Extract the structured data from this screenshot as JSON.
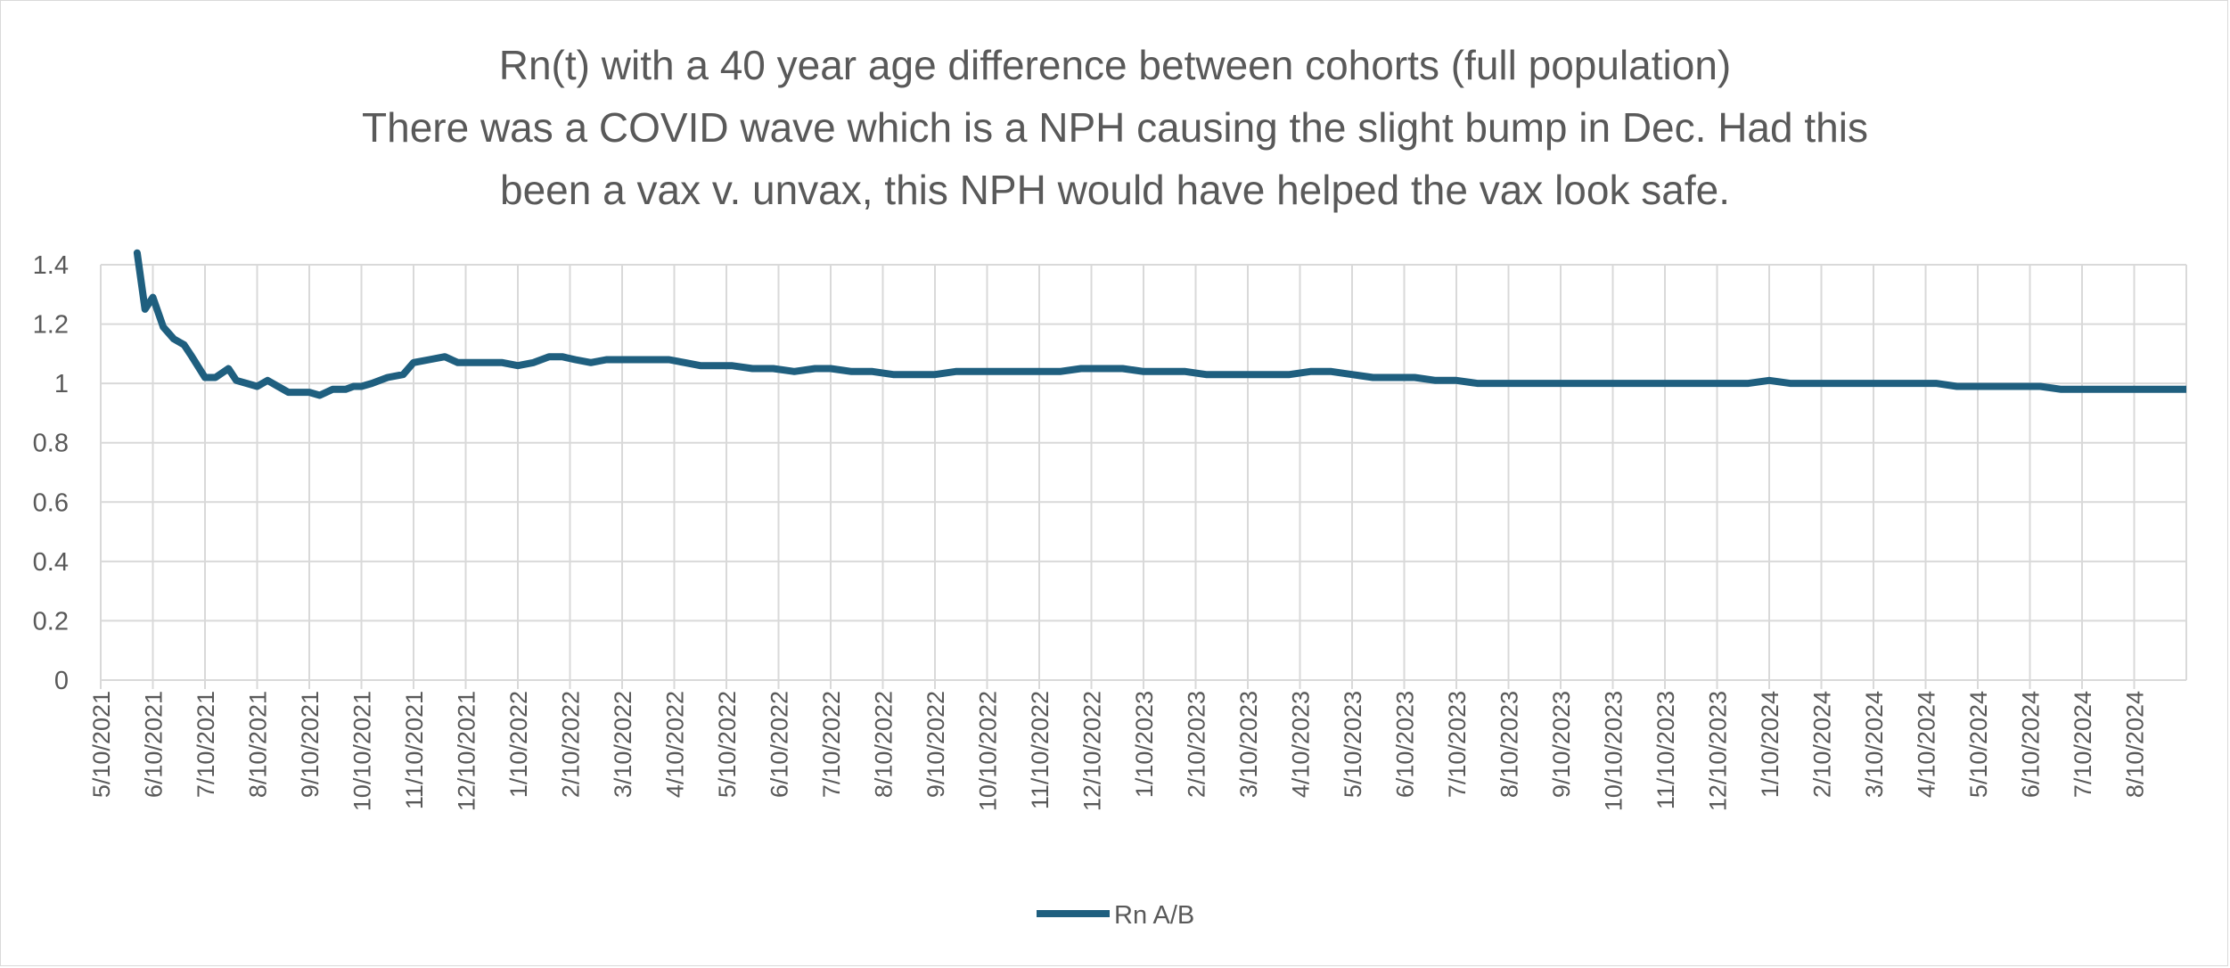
{
  "chart_data": {
    "type": "line",
    "title_lines": [
      "Rn(t) with a 40 year age difference between cohorts (full population)",
      "There was a COVID wave which is a NPH causing the slight bump in Dec.  Had this",
      "been a vax v. unvax, this NPH would have helped the vax look safe."
    ],
    "ylim": [
      0,
      1.4
    ],
    "y_ticks": [
      "0",
      "0.2",
      "0.4",
      "0.6",
      "0.8",
      "1",
      "1.2",
      "1.4"
    ],
    "x_ticks": [
      "5/10/2021",
      "6/10/2021",
      "7/10/2021",
      "8/10/2021",
      "9/10/2021",
      "10/10/2021",
      "11/10/2021",
      "12/10/2021",
      "1/10/2022",
      "2/10/2022",
      "3/10/2022",
      "4/10/2022",
      "5/10/2022",
      "6/10/2022",
      "7/10/2022",
      "8/10/2022",
      "9/10/2022",
      "10/10/2022",
      "11/10/2022",
      "12/10/2022",
      "1/10/2023",
      "2/10/2023",
      "3/10/2023",
      "4/10/2023",
      "5/10/2023",
      "6/10/2023",
      "7/10/2023",
      "8/10/2023",
      "9/10/2023",
      "10/10/2023",
      "11/10/2023",
      "12/10/2023",
      "1/10/2024",
      "2/10/2024",
      "3/10/2024",
      "4/10/2024",
      "5/10/2024",
      "6/10/2024",
      "7/10/2024",
      "8/10/2024"
    ],
    "grid": true,
    "legend_position": "bottom",
    "series": [
      {
        "name": "Rn A/B",
        "color": "#1f5f7f",
        "x_months": [
          0.7,
          0.85,
          1.0,
          1.2,
          1.4,
          1.6,
          1.75,
          2.0,
          2.2,
          2.45,
          2.6,
          2.8,
          3.0,
          3.2,
          3.4,
          3.6,
          3.8,
          4.0,
          4.2,
          4.45,
          4.7,
          4.85,
          5.0,
          5.2,
          5.5,
          5.8,
          6.0,
          6.3,
          6.6,
          6.85,
          7.1,
          7.4,
          7.7,
          8.0,
          8.3,
          8.6,
          8.85,
          9.1,
          9.4,
          9.7,
          10.0,
          10.3,
          10.6,
          10.9,
          11.2,
          11.5,
          11.8,
          12.1,
          12.5,
          12.9,
          13.3,
          13.7,
          14.0,
          14.4,
          14.8,
          15.2,
          15.6,
          16.0,
          16.4,
          16.8,
          17.2,
          17.6,
          18.0,
          18.4,
          18.8,
          19.2,
          19.6,
          20.0,
          20.4,
          20.8,
          21.2,
          21.6,
          22.0,
          22.4,
          22.8,
          23.2,
          23.6,
          24.0,
          24.4,
          24.8,
          25.2,
          25.6,
          26.0,
          26.4,
          26.8,
          27.2,
          27.6,
          28.0,
          28.4,
          28.8,
          29.2,
          29.6,
          30.0,
          30.4,
          30.8,
          31.2,
          31.6,
          32.0,
          32.4,
          32.8,
          33.2,
          33.6,
          34.0,
          34.4,
          34.8,
          35.2,
          35.6,
          36.0,
          36.4,
          36.8,
          37.2,
          37.6,
          38.0,
          38.4,
          38.8,
          39.2,
          39.6,
          40.0
        ],
        "values": [
          1.44,
          1.25,
          1.29,
          1.19,
          1.15,
          1.13,
          1.09,
          1.02,
          1.02,
          1.05,
          1.01,
          1.0,
          0.99,
          1.01,
          0.99,
          0.97,
          0.97,
          0.97,
          0.96,
          0.98,
          0.98,
          0.99,
          0.99,
          1.0,
          1.02,
          1.03,
          1.07,
          1.08,
          1.09,
          1.07,
          1.07,
          1.07,
          1.07,
          1.06,
          1.07,
          1.09,
          1.09,
          1.08,
          1.07,
          1.08,
          1.08,
          1.08,
          1.08,
          1.08,
          1.07,
          1.06,
          1.06,
          1.06,
          1.05,
          1.05,
          1.04,
          1.05,
          1.05,
          1.04,
          1.04,
          1.03,
          1.03,
          1.03,
          1.04,
          1.04,
          1.04,
          1.04,
          1.04,
          1.04,
          1.05,
          1.05,
          1.05,
          1.04,
          1.04,
          1.04,
          1.03,
          1.03,
          1.03,
          1.03,
          1.03,
          1.04,
          1.04,
          1.03,
          1.02,
          1.02,
          1.02,
          1.01,
          1.01,
          1.0,
          1.0,
          1.0,
          1.0,
          1.0,
          1.0,
          1.0,
          1.0,
          1.0,
          1.0,
          1.0,
          1.0,
          1.0,
          1.0,
          1.01,
          1.0,
          1.0,
          1.0,
          1.0,
          1.0,
          1.0,
          1.0,
          1.0,
          0.99,
          0.99,
          0.99,
          0.99,
          0.99,
          0.98,
          0.98,
          0.98,
          0.98,
          0.98,
          0.98,
          0.98
        ]
      }
    ]
  }
}
